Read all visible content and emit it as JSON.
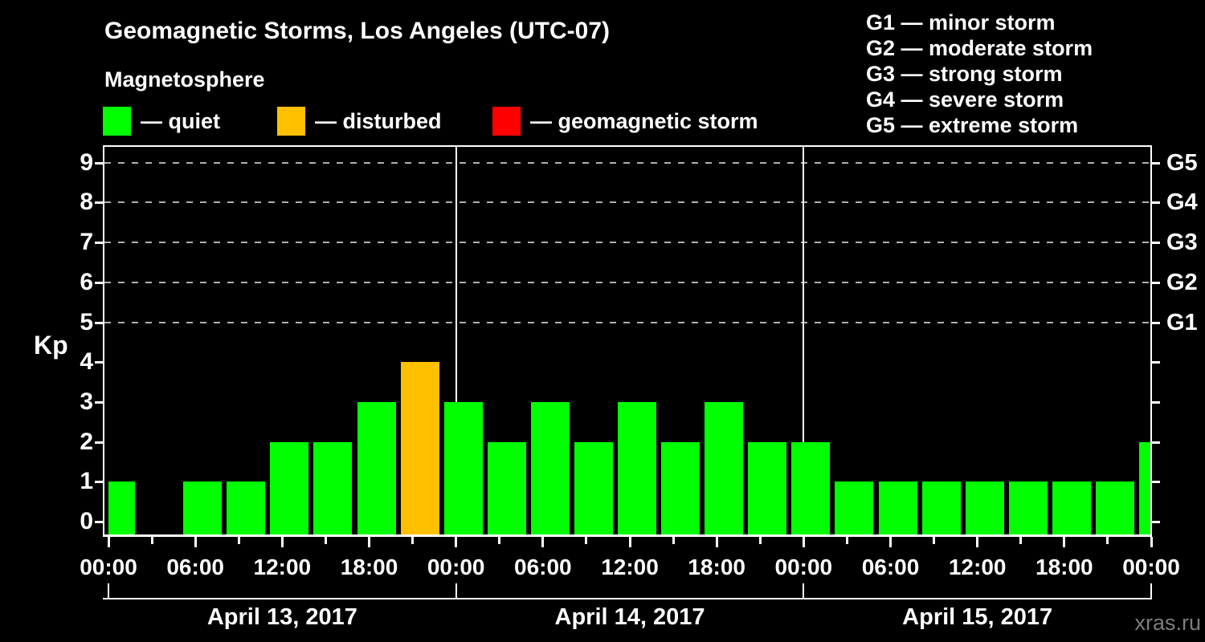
{
  "title": "Geomagnetic Storms, Los Angeles (UTC-07)",
  "subtitle": "Magnetosphere",
  "legend": {
    "items": [
      {
        "label": "— quiet",
        "color": "#00ff00"
      },
      {
        "label": "— disturbed",
        "color": "#ffc000"
      },
      {
        "label": "— geomagnetic storm",
        "color": "#ff0000"
      }
    ]
  },
  "g_legend": {
    "items": [
      "G1 — minor storm",
      "G2 — moderate storm",
      "G3 — strong storm",
      "G4 — severe storm",
      "G5 — extreme storm"
    ]
  },
  "watermark": "xras.ru",
  "chart_data": {
    "type": "bar",
    "title": "Geomagnetic Storms, Los Angeles (UTC-07)",
    "ylabel": "Kp",
    "ylim": [
      0,
      9
    ],
    "yticks": [
      0,
      1,
      2,
      3,
      4,
      5,
      6,
      7,
      8,
      9
    ],
    "grid": "dashed horizontal at Kp 5-9 only",
    "gridlines_kp": [
      5,
      6,
      7,
      8,
      9
    ],
    "right_axis": {
      "labels": [
        "G1",
        "G2",
        "G3",
        "G4",
        "G5"
      ],
      "kp_levels": [
        5,
        6,
        7,
        8,
        9
      ]
    },
    "time_labels": [
      "00:00",
      "06:00",
      "12:00",
      "18:00"
    ],
    "end_time_label": "00:00",
    "hours_per_bar": 3,
    "days": [
      {
        "date": "April 13, 2017",
        "values": [
          1,
          0,
          1,
          1,
          2,
          2,
          3,
          4
        ]
      },
      {
        "date": "April 14, 2017",
        "values": [
          3,
          2,
          3,
          2,
          3,
          2,
          3,
          2
        ]
      },
      {
        "date": "April 15, 2017",
        "values": [
          2,
          1,
          1,
          1,
          1,
          1,
          1,
          1
        ]
      }
    ],
    "next_day_partial_value": 2,
    "colors": {
      "quiet": "#00ff00",
      "disturbed": "#ffc000",
      "storm": "#ff0000"
    },
    "color_rule": {
      "quiet_max_kp": 3,
      "disturbed_max_kp": 4,
      "storm_min_kp": 5
    }
  }
}
